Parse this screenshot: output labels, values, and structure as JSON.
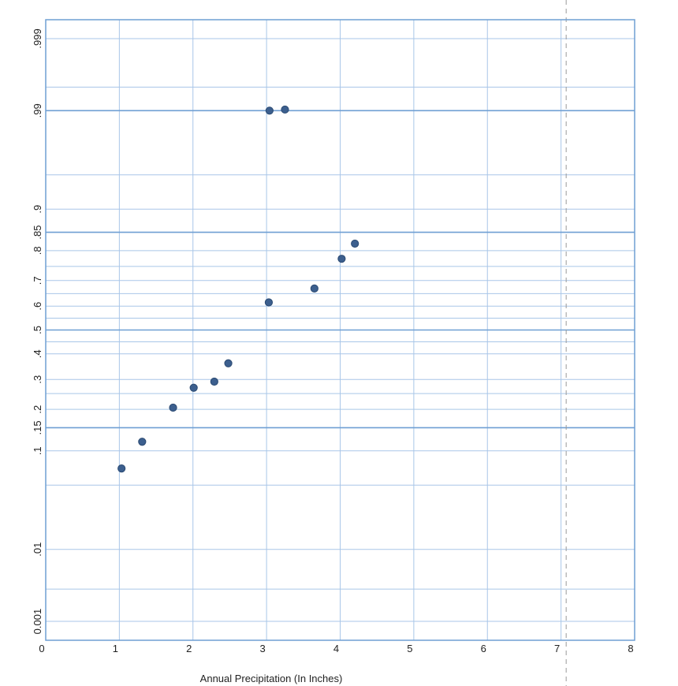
{
  "chart_data": {
    "type": "scatter",
    "title": "",
    "xlabel": "Annual Precipitation (In Inches)",
    "ylabel": "",
    "xlim": [
      0,
      8
    ],
    "x_ticks": [
      0,
      1,
      2,
      3,
      4,
      5,
      6,
      7,
      8
    ],
    "x_tick_labels": [
      "0",
      "1",
      "2",
      "3",
      "4",
      "5",
      "6",
      "7",
      "8"
    ],
    "y_scale": "normal-probability",
    "y_ticks": [
      0.001,
      0.01,
      0.1,
      0.15,
      0.2,
      0.3,
      0.4,
      0.5,
      0.6,
      0.7,
      0.8,
      0.85,
      0.9,
      0.99,
      0.999
    ],
    "y_tick_labels": [
      "0.001",
      ".01",
      ".1",
      ".15",
      ".2",
      ".3",
      ".4",
      ".5",
      ".6",
      ".7",
      ".8",
      ".85",
      ".9",
      ".99",
      ".999"
    ],
    "y_major_gridlines": [
      0.15,
      0.5,
      0.85,
      0.99
    ],
    "y_extra_gridlines": [
      0.003,
      0.05,
      0.25,
      0.45,
      0.55,
      0.65,
      0.75,
      0.95,
      0.995
    ],
    "reference_line_x": 7.07,
    "grid": true,
    "marker_color": "#3c5f8e",
    "grid_color": "#a9c6e8",
    "major_grid_color": "#6f9fd3",
    "axis_color": "#6f9fd3",
    "x": [
      1.03,
      1.31,
      1.73,
      2.01,
      2.29,
      2.48,
      3.03,
      3.04,
      3.25,
      3.65,
      4.02,
      4.2
    ],
    "y": [
      0.071,
      0.118,
      0.205,
      0.27,
      0.292,
      0.362,
      0.615,
      0.99,
      0.9903,
      0.67,
      0.775,
      0.82
    ]
  }
}
